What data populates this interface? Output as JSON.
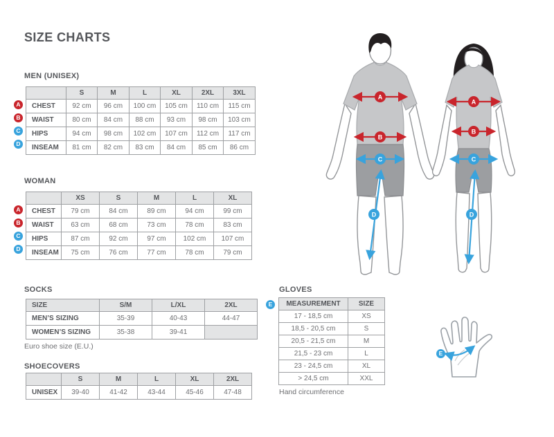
{
  "title": "SIZE CHARTS",
  "colors": {
    "accent_red": "#c9252c",
    "accent_blue": "#38a3dd",
    "heading_text": "#54565a",
    "cell_text": "#6d6e71",
    "table_border": "#9d9fa2",
    "header_bg": "#e3e4e5",
    "shirt_gray": "#c6c7c9",
    "shorts_gray": "#9c9ea1",
    "hair_black": "#231f20"
  },
  "sections": {
    "men": {
      "label": "MEN (UNISEX)"
    },
    "woman": {
      "label": "WOMAN"
    },
    "socks": {
      "label": "SOCKS",
      "caption": "Euro shoe size (E.U.)"
    },
    "shoecovers": {
      "label": "SHOECOVERS"
    },
    "gloves": {
      "label": "GLOVES",
      "caption": "Hand circumference",
      "badge": "E"
    }
  },
  "tables": {
    "men": {
      "columns": [
        "",
        "S",
        "M",
        "L",
        "XL",
        "2XL",
        "3XL"
      ],
      "rows": [
        {
          "badge": "A",
          "badge_color": "red",
          "label": "CHEST",
          "values": [
            "92 cm",
            "96 cm",
            "100 cm",
            "105 cm",
            "110 cm",
            "115 cm"
          ]
        },
        {
          "badge": "B",
          "badge_color": "red",
          "label": "WAIST",
          "values": [
            "80 cm",
            "84 cm",
            "88 cm",
            "93 cm",
            "98 cm",
            "103 cm"
          ]
        },
        {
          "badge": "C",
          "badge_color": "blue",
          "label": "HIPS",
          "values": [
            "94 cm",
            "98 cm",
            "102 cm",
            "107 cm",
            "112 cm",
            "117 cm"
          ]
        },
        {
          "badge": "D",
          "badge_color": "blue",
          "label": "INSEAM",
          "values": [
            "81 cm",
            "82 cm",
            "83 cm",
            "84 cm",
            "85 cm",
            "86 cm"
          ]
        }
      ]
    },
    "woman": {
      "columns": [
        "",
        "XS",
        "S",
        "M",
        "L",
        "XL"
      ],
      "rows": [
        {
          "badge": "A",
          "badge_color": "red",
          "label": "CHEST",
          "values": [
            "79 cm",
            "84 cm",
            "89 cm",
            "94 cm",
            "99 cm"
          ]
        },
        {
          "badge": "B",
          "badge_color": "red",
          "label": "WAIST",
          "values": [
            "63 cm",
            "68 cm",
            "73 cm",
            "78 cm",
            "83 cm"
          ]
        },
        {
          "badge": "C",
          "badge_color": "blue",
          "label": "HIPS",
          "values": [
            "87 cm",
            "92 cm",
            "97 cm",
            "102 cm",
            "107 cm"
          ]
        },
        {
          "badge": "D",
          "badge_color": "blue",
          "label": "INSEAM",
          "values": [
            "75 cm",
            "76 cm",
            "77 cm",
            "78 cm",
            "79 cm"
          ]
        }
      ]
    },
    "socks": {
      "columns": [
        "SIZE",
        "S/M",
        "L/XL",
        "2XL"
      ],
      "rows": [
        {
          "label": "MEN’S SIZING",
          "values": [
            "35-39",
            "40-43",
            "44-47"
          ]
        },
        {
          "label": "WOMEN’S SIZING",
          "values": [
            "35-38",
            "39-41",
            null
          ]
        }
      ]
    },
    "shoecovers": {
      "columns": [
        "",
        "S",
        "M",
        "L",
        "XL",
        "2XL"
      ],
      "rows": [
        {
          "label": "UNISEX",
          "values": [
            "39-40",
            "41-42",
            "43-44",
            "45-46",
            "47-48"
          ]
        }
      ]
    },
    "gloves": {
      "columns": [
        "MEASUREMENT",
        "SIZE"
      ],
      "rows": [
        {
          "values": [
            "17 - 18,5 cm",
            "XS"
          ]
        },
        {
          "values": [
            "18,5 - 20,5 cm",
            "S"
          ]
        },
        {
          "values": [
            "20,5 - 21,5 cm",
            "M"
          ]
        },
        {
          "values": [
            "21,5 - 23 cm",
            "L"
          ]
        },
        {
          "values": [
            "23 - 24,5 cm",
            "XL"
          ]
        },
        {
          "values": [
            "> 24,5 cm",
            "XXL"
          ]
        }
      ]
    }
  },
  "figures": {
    "man": {
      "badge_a": "A",
      "badge_b": "B",
      "badge_c": "C",
      "badge_d": "D"
    },
    "woman": {
      "badge_a": "A",
      "badge_b": "B",
      "badge_c": "C",
      "badge_d": "D"
    },
    "hand": {
      "badge": "E"
    }
  }
}
